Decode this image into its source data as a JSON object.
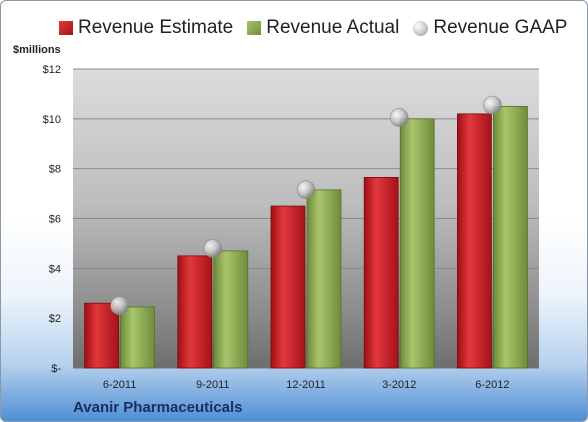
{
  "legend": {
    "estimate": "Revenue Estimate",
    "actual": "Revenue Actual",
    "gaap": "Revenue GAAP"
  },
  "company": "Avanir Pharmaceuticals",
  "colors": {
    "estimate": "#c8171d",
    "actual": "#8aa84f",
    "gaap": "#c0c0c0"
  },
  "chart_data": {
    "type": "bar",
    "ylabel": "$millions",
    "ylim": [
      0,
      12
    ],
    "yticks": [
      0,
      2,
      4,
      6,
      8,
      10,
      12
    ],
    "ytick_labels": [
      "$-",
      "$2",
      "$4",
      "$6",
      "$8",
      "$10",
      "$12"
    ],
    "categories": [
      "6-2011",
      "9-2011",
      "12-2011",
      "3-2012",
      "6-2012"
    ],
    "grid": true,
    "legend_position": "top",
    "series": [
      {
        "name": "Revenue Estimate",
        "type": "bar",
        "values": [
          2.6,
          4.5,
          6.5,
          7.65,
          10.2
        ]
      },
      {
        "name": "Revenue Actual",
        "type": "bar",
        "values": [
          2.45,
          4.7,
          7.15,
          10.0,
          10.5
        ]
      },
      {
        "name": "Revenue GAAP",
        "type": "scatter",
        "values": [
          2.5,
          4.8,
          7.15,
          10.05,
          10.55
        ]
      }
    ]
  }
}
